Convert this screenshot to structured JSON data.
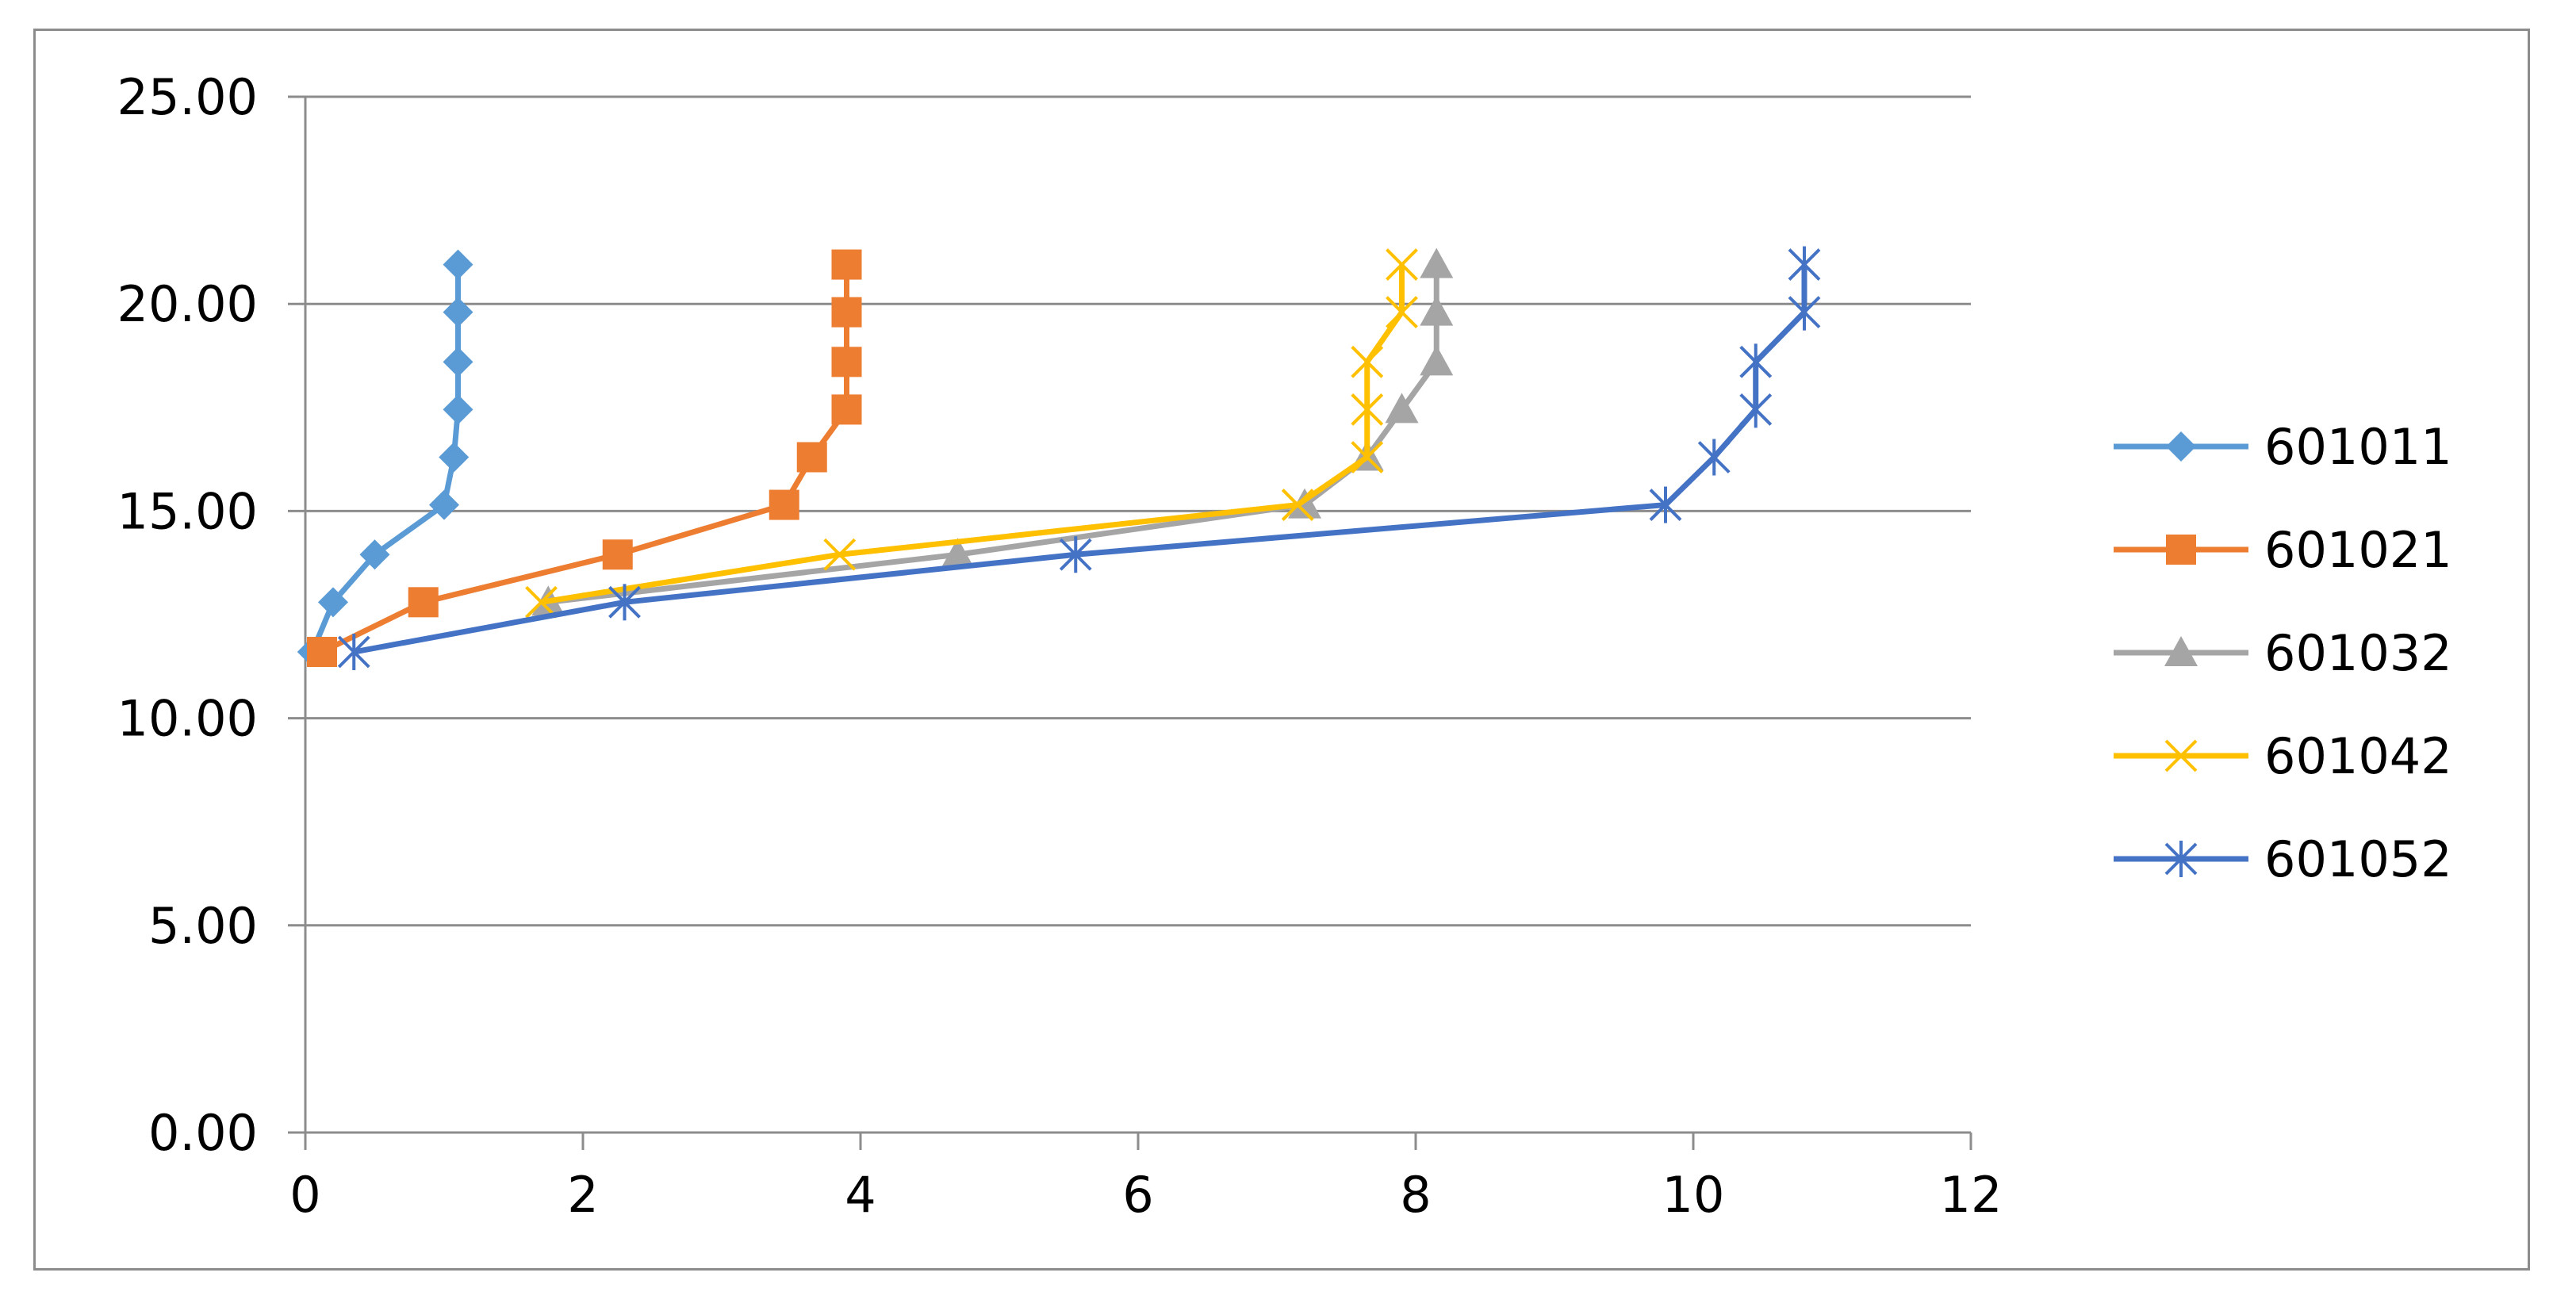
{
  "chart_data": {
    "type": "scatter",
    "title": "",
    "xlabel": "",
    "ylabel": "",
    "xlim": [
      0,
      12
    ],
    "ylim": [
      0,
      25
    ],
    "x_ticks": [
      "0",
      "2",
      "4",
      "6",
      "8",
      "10",
      "12"
    ],
    "y_ticks": [
      "0.00",
      "5.00",
      "10.00",
      "15.00",
      "20.00",
      "25.00"
    ],
    "grid": "horizontal",
    "legend_position": "right",
    "series": [
      {
        "name": "601011",
        "color": "#5b9bd5",
        "marker": "diamond",
        "points": [
          [
            0.05,
            11.6
          ],
          [
            0.2,
            12.8
          ],
          [
            0.5,
            13.95
          ],
          [
            1.0,
            15.15
          ],
          [
            1.07,
            16.3
          ],
          [
            1.1,
            17.45
          ],
          [
            1.1,
            18.6
          ],
          [
            1.1,
            19.8
          ],
          [
            1.1,
            20.95
          ]
        ]
      },
      {
        "name": "601021",
        "color": "#ed7d31",
        "marker": "square",
        "points": [
          [
            0.12,
            11.6
          ],
          [
            0.85,
            12.8
          ],
          [
            2.25,
            13.95
          ],
          [
            3.45,
            15.15
          ],
          [
            3.65,
            16.3
          ],
          [
            3.9,
            17.45
          ],
          [
            3.9,
            18.6
          ],
          [
            3.9,
            19.8
          ],
          [
            3.9,
            20.95
          ]
        ]
      },
      {
        "name": "601032",
        "color": "#a5a5a5",
        "marker": "triangle",
        "points": [
          [
            1.75,
            12.8
          ],
          [
            4.7,
            13.95
          ],
          [
            7.2,
            15.15
          ],
          [
            7.65,
            16.3
          ],
          [
            7.9,
            17.45
          ],
          [
            8.15,
            18.6
          ],
          [
            8.15,
            19.8
          ],
          [
            8.15,
            20.95
          ]
        ]
      },
      {
        "name": "601042",
        "color": "#ffc000",
        "marker": "x",
        "points": [
          [
            1.7,
            12.8
          ],
          [
            3.85,
            13.95
          ],
          [
            7.15,
            15.15
          ],
          [
            7.65,
            16.3
          ],
          [
            7.65,
            17.45
          ],
          [
            7.65,
            18.6
          ],
          [
            7.9,
            19.8
          ],
          [
            7.9,
            20.95
          ]
        ]
      },
      {
        "name": "601052",
        "color": "#4472c4",
        "marker": "star",
        "points": [
          [
            0.35,
            11.6
          ],
          [
            2.3,
            12.8
          ],
          [
            5.55,
            13.95
          ],
          [
            9.8,
            15.15
          ],
          [
            10.15,
            16.3
          ],
          [
            10.45,
            17.45
          ],
          [
            10.45,
            18.6
          ],
          [
            10.8,
            19.8
          ],
          [
            10.8,
            20.95
          ]
        ]
      }
    ]
  }
}
